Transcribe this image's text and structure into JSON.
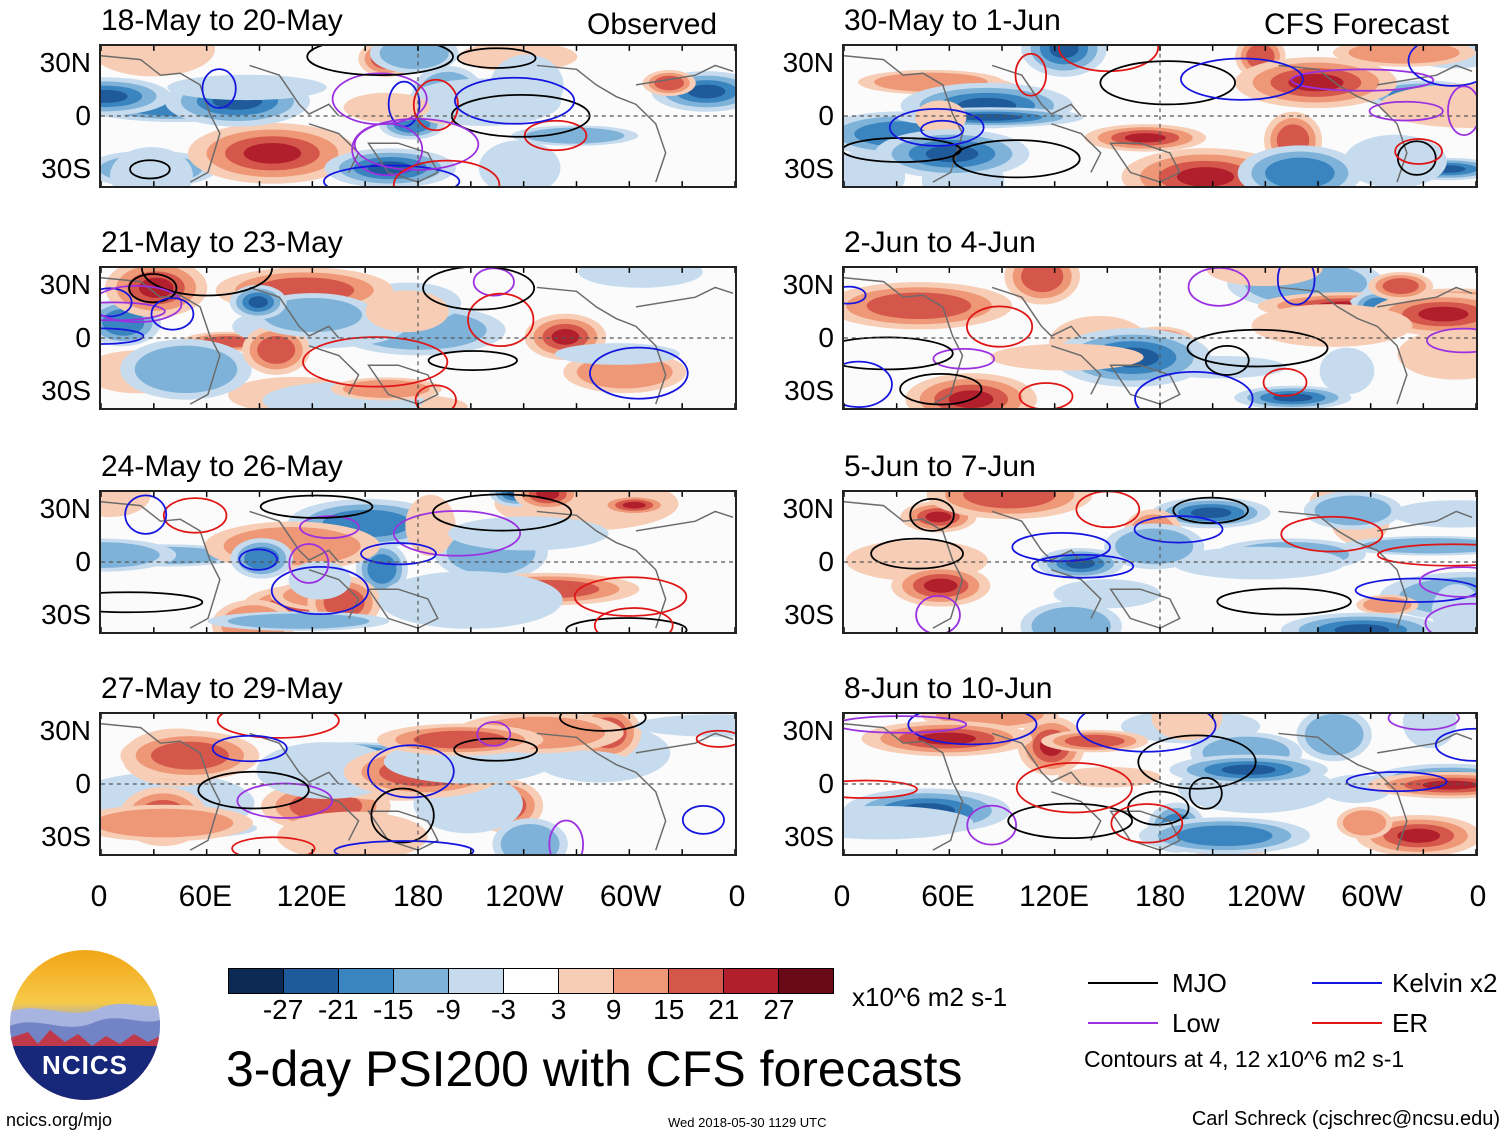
{
  "column_titles": {
    "left": "Observed",
    "right": "CFS Forecast"
  },
  "lat_labels": [
    "30N",
    "0",
    "30S"
  ],
  "lon_labels": [
    "0",
    "60E",
    "120E",
    "180",
    "120W",
    "60W",
    "0"
  ],
  "panels": [
    {
      "title": "18-May to 20-May",
      "column": "Observed"
    },
    {
      "title": "21-May to 23-May",
      "column": "Observed"
    },
    {
      "title": "24-May to 26-May",
      "column": "Observed"
    },
    {
      "title": "27-May to 29-May",
      "column": "Observed"
    },
    {
      "title": "30-May to 1-Jun",
      "column": "CFS Forecast"
    },
    {
      "title": "2-Jun to 4-Jun",
      "column": "CFS Forecast"
    },
    {
      "title": "5-Jun to 7-Jun",
      "column": "CFS Forecast"
    },
    {
      "title": "8-Jun to 10-Jun",
      "column": "CFS Forecast"
    }
  ],
  "chart_data": {
    "type": "heatmap",
    "title": "3-day PSI200 with CFS forecasts",
    "variable": "200-hPa streamfunction anomaly (PSI200)",
    "units": "x10^6 m2 s-1",
    "colorbar": {
      "levels": [
        -27,
        -21,
        -15,
        -9,
        -3,
        3,
        9,
        15,
        21,
        27
      ],
      "colors": [
        "#0d2a55",
        "#1f5a9a",
        "#3a85c0",
        "#7fb2d8",
        "#c6dcee",
        "#ffffff",
        "#f7cdb5",
        "#ee9877",
        "#d5574b",
        "#b11f2c",
        "#6a0a18"
      ]
    },
    "xlim_deg": [
      0,
      360
    ],
    "ylim_deg": [
      -40,
      40
    ],
    "legend": [
      {
        "label": "MJO",
        "color": "#000000"
      },
      {
        "label": "Kelvin x2",
        "color": "#1515e0"
      },
      {
        "label": "Low",
        "color": "#9b30e0"
      },
      {
        "label": "ER",
        "color": "#e01515"
      }
    ],
    "contour_note": "Contours at 4, 12 x10^6 m2 s-1"
  },
  "logo_text": "NCICS",
  "footer": {
    "left": "ncics.org/mjo",
    "middle": "Wed 2018-05-30 1129 UTC",
    "right": "Carl Schreck (cjschrec@ncsu.edu)"
  }
}
